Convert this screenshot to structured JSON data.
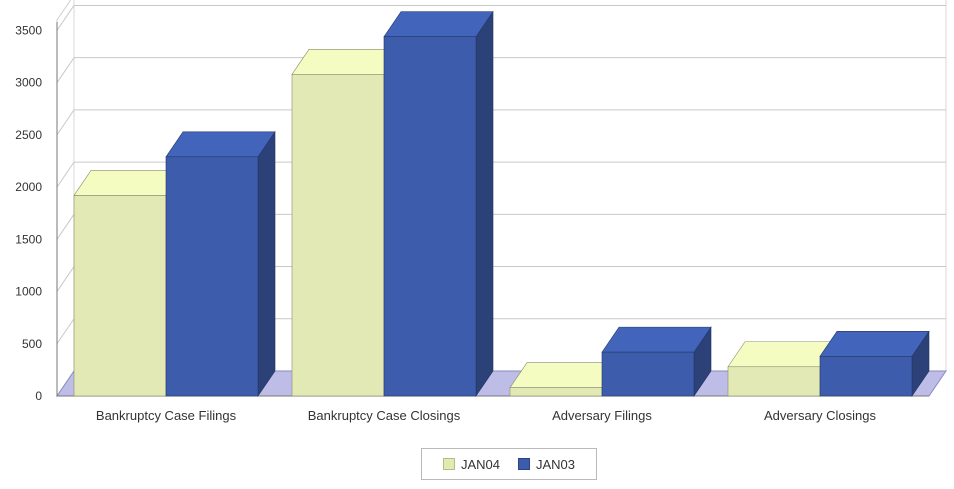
{
  "chart_data": {
    "type": "bar",
    "style": "3d-clustered-column",
    "categories": [
      "Bankruptcy Case Filings",
      "Bankruptcy Case Closings",
      "Adversary Filings",
      "Adversary Closings"
    ],
    "series": [
      {
        "name": "JAN04",
        "values": [
          1920,
          3080,
          80,
          280
        ],
        "color": "#e3e9b4"
      },
      {
        "name": "JAN03",
        "values": [
          2290,
          3440,
          420,
          380
        ],
        "color": "#3d5dac"
      }
    ],
    "yticks": [
      0,
      500,
      1000,
      1500,
      2000,
      2500,
      3000,
      3500
    ],
    "ylim": [
      0,
      3600
    ],
    "grid": true,
    "legend_position": "bottom",
    "title": "",
    "xlabel": "",
    "ylabel": ""
  }
}
